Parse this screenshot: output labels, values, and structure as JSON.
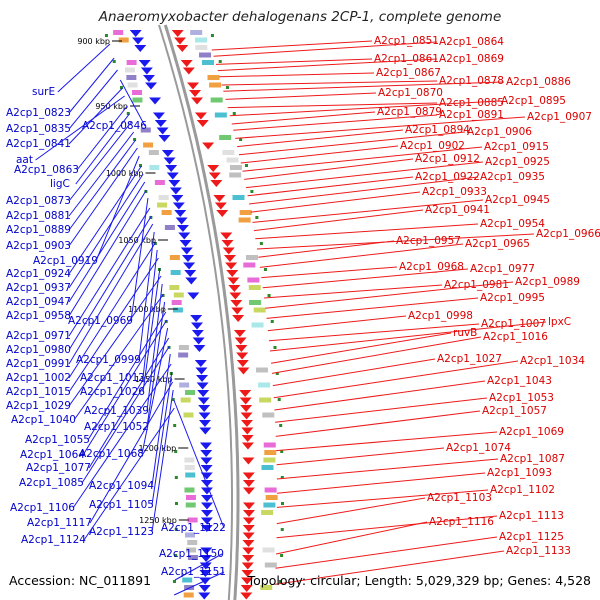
{
  "title": "Anaeromyxobacter dehalogenans 2CP-1, complete genome",
  "footer": {
    "accession": "Accession: NC_011891",
    "summary": "Topology: circular; Length: 5,029,329 bp; Genes: 4,528"
  },
  "colors": {
    "minus_strand": "#1a1aee",
    "plus_strand": "#ee1a1a",
    "backbone": "#9a9a9a",
    "tick": "#2a8a2a"
  },
  "scale_ticks": [
    "900 kbp",
    "950 kbp",
    "1000 kbp",
    "1050 kbp",
    "1100 kbp",
    "1150 kbp",
    "1200 kbp",
    "1250 kbp"
  ],
  "left_labels": [
    "surE",
    "A2cp1_0823",
    "A2cp1_0835",
    "A2cp1_0846",
    "A2cp1_0841",
    "aat",
    "A2cp1_0863",
    "ligC",
    "A2cp1_0873",
    "A2cp1_0881",
    "A2cp1_0889",
    "A2cp1_0903",
    "A2cp1_0919",
    "A2cp1_0924",
    "A2cp1_0937",
    "A2cp1_0947",
    "A2cp1_0958",
    "A2cp1_0969",
    "A2cp1_0971",
    "A2cp1_0980",
    "A2cp1_0991",
    "A2cp1_0999",
    "A2cp1_1002",
    "A2cp1_1012",
    "A2cp1_1015",
    "A2cp1_1026",
    "A2cp1_1029",
    "A2cp1_1039",
    "A2cp1_1040",
    "A2cp1_1052",
    "A2cp1_1055",
    "A2cp1_1064",
    "A2cp1_1068",
    "A2cp1_1077",
    "A2cp1_1085",
    "A2cp1_1094",
    "A2cp1_1106",
    "A2cp1_1105",
    "A2cp1_1117",
    "A2cp1_1123",
    "A2cp1_1122",
    "A2cp1_1124",
    "A2cp1_1150",
    "A2cp1_1151"
  ],
  "right_labels": [
    "A2cp1_0851",
    "A2cp1_0864",
    "A2cp1_0861",
    "A2cp1_0869",
    "A2cp1_0867",
    "A2cp1_0878",
    "A2cp1_0886",
    "A2cp1_0870",
    "A2cp1_0885",
    "A2cp1_0895",
    "A2cp1_0879",
    "A2cp1_0891",
    "A2cp1_0907",
    "A2cp1_0894",
    "A2cp1_0906",
    "A2cp1_0902",
    "A2cp1_0915",
    "A2cp1_0912",
    "A2cp1_0925",
    "A2cp1_0922",
    "A2cp1_0935",
    "A2cp1_0933",
    "A2cp1_0945",
    "A2cp1_0941",
    "A2cp1_0954",
    "A2cp1_0966",
    "A2cp1_0957",
    "A2cp1_0965",
    "A2cp1_0968",
    "A2cp1_0977",
    "A2cp1_0981",
    "A2cp1_0989",
    "A2cp1_0995",
    "A2cp1_0998",
    "A2cp1_1007",
    "lpxC",
    "ruvB",
    "A2cp1_1016",
    "A2cp1_1027",
    "A2cp1_1034",
    "A2cp1_1043",
    "A2cp1_1053",
    "A2cp1_1057",
    "A2cp1_1069",
    "A2cp1_1074",
    "A2cp1_1087",
    "A2cp1_1093",
    "A2cp1_1102",
    "A2cp1_1103",
    "A2cp1_1113",
    "A2cp1_1116",
    "A2cp1_1125",
    "A2cp1_1133"
  ]
}
